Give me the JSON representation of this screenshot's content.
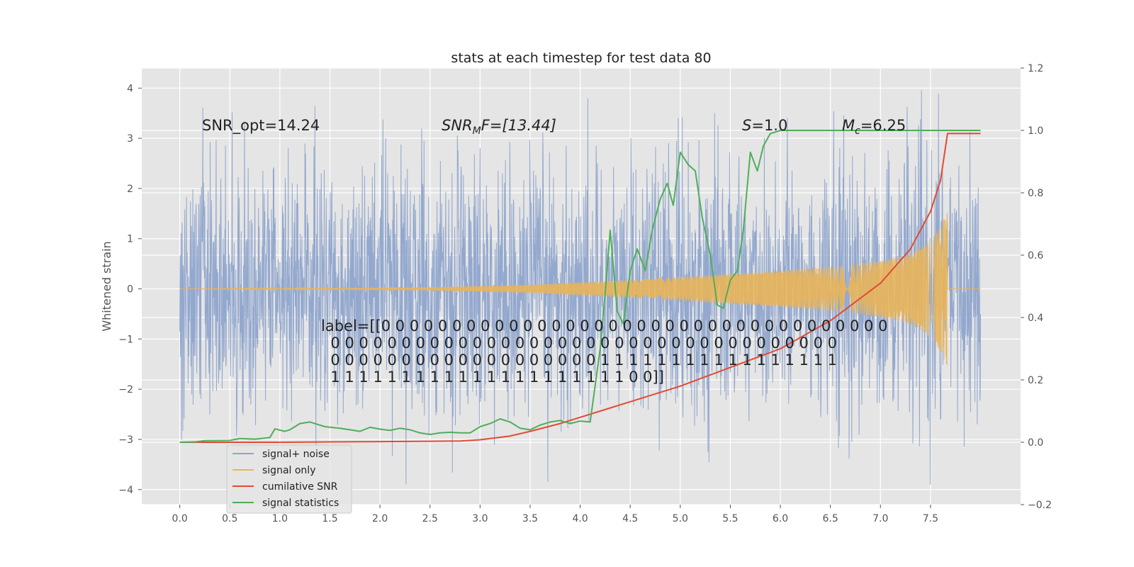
{
  "chart_data": {
    "type": "line",
    "title": "stats at each timestep for test data 80",
    "ylabel": "Whitened strain",
    "xlabel": "",
    "xlim": [
      -0.38,
      8.4
    ],
    "ylim": [
      -4.3,
      4.4
    ],
    "y2lim": [
      -0.2,
      1.2
    ],
    "grid": true,
    "x_ticks": [
      0.0,
      0.5,
      1.0,
      1.5,
      2.0,
      2.5,
      3.0,
      3.5,
      4.0,
      4.5,
      5.0,
      5.5,
      6.0,
      6.5,
      7.0,
      7.5
    ],
    "x_tick_labels": [
      "0.0",
      "0.5",
      "1.0",
      "1.5",
      "2.0",
      "2.5",
      "3.0",
      "3.5",
      "4.0",
      "4.5",
      "5.0",
      "5.5",
      "6.0",
      "6.5",
      "7.0",
      "7.5"
    ],
    "y_ticks": [
      -4,
      -3,
      -2,
      -1,
      0,
      1,
      2,
      3,
      4
    ],
    "y_tick_labels": [
      "−4",
      "−3",
      "−2",
      "−1",
      "0",
      "1",
      "2",
      "3",
      "4"
    ],
    "y2_ticks": [
      -0.2,
      0.0,
      0.2,
      0.4,
      0.6,
      0.8,
      1.0,
      1.2
    ],
    "y2_tick_labels": [
      "−0.2",
      "0.0",
      "0.2",
      "0.4",
      "0.6",
      "0.8",
      "1.0",
      "1.2"
    ],
    "legend_position": "lower-left",
    "annotations": {
      "snr_opt": "SNR_opt=14.24",
      "snr_mf_sym": "SNR",
      "snr_mf_sub": "M",
      "snr_mf_rest": "F=[13.44]",
      "s_sym": "S",
      "s_rest": "=1.0",
      "mc_sym": "M",
      "mc_sub": "c",
      "mc_rest": "=6.25",
      "label_lines": [
        "label=[[0 0 0 0 0 0 0 0 0 0 0 0 0 0 0 0 0 0 0 0 0 0 0 0 0 0 0 0 0 0 0 0 0 0 0 0",
        "  0 0 0 0 0 0 0 0 0 0 0 0 0 0 0 0 0 0 0 0 0 0 0 0 0 0 0 0 0 0 0 0 0 0 0 0",
        "  0 0 0 0 0 0 0 0 0 0 0 0 0 0 0 0 0 0 0 1 1 1 1 1 1 1 1 1 1 1 1 1 1 1 1 1",
        "  1 1 1 1 1 1 1 1 1 1 1 1 1 1 1 1 1 1 1 1 1 0 0]]"
      ]
    },
    "series": [
      {
        "name": "signal+ noise",
        "color": "#8ea4cc",
        "axis": "left",
        "kind": "noise",
        "x_range": [
          0.0,
          8.0
        ],
        "amplitude_range": [
          -3.9,
          4.0
        ],
        "typical_std": 1.0
      },
      {
        "name": "signal only",
        "color": "#e8b45a",
        "axis": "left",
        "kind": "chirp",
        "x_range": [
          0.0,
          8.0
        ],
        "merger_time": 7.67,
        "envelope": {
          "x": [
            0.0,
            2.5,
            3.5,
            4.5,
            5.0,
            5.5,
            6.0,
            6.5,
            7.0,
            7.3,
            7.5,
            7.6,
            7.67
          ],
          "y": [
            0.0,
            0.03,
            0.08,
            0.18,
            0.24,
            0.3,
            0.36,
            0.44,
            0.56,
            0.7,
            0.95,
            1.25,
            1.55
          ]
        }
      },
      {
        "name": "cumilative SNR",
        "color": "#e24a33",
        "axis": "right",
        "x": [
          0.0,
          0.5,
          1.0,
          1.5,
          2.0,
          2.5,
          2.8,
          3.0,
          3.3,
          3.5,
          3.8,
          4.0,
          4.2,
          4.5,
          5.0,
          5.5,
          6.0,
          6.5,
          7.0,
          7.3,
          7.5,
          7.6,
          7.67,
          8.0
        ],
        "y": [
          0.0,
          0.0,
          0.0,
          0.001,
          0.002,
          0.003,
          0.004,
          0.008,
          0.02,
          0.035,
          0.06,
          0.08,
          0.1,
          0.13,
          0.18,
          0.24,
          0.3,
          0.39,
          0.51,
          0.62,
          0.74,
          0.84,
          0.99,
          0.99
        ]
      },
      {
        "name": "signal statistics",
        "color": "#4eae5b",
        "axis": "right",
        "x": [
          0.0,
          0.15,
          0.25,
          0.5,
          0.6,
          0.75,
          0.9,
          0.95,
          1.05,
          1.1,
          1.2,
          1.3,
          1.45,
          1.6,
          1.7,
          1.8,
          1.9,
          2.0,
          2.1,
          2.2,
          2.3,
          2.4,
          2.5,
          2.6,
          2.7,
          2.8,
          2.9,
          3.0,
          3.1,
          3.2,
          3.3,
          3.4,
          3.5,
          3.6,
          3.7,
          3.8,
          3.9,
          4.0,
          4.1,
          4.2,
          4.25,
          4.3,
          4.37,
          4.43,
          4.5,
          4.57,
          4.65,
          4.72,
          4.8,
          4.87,
          4.93,
          5.0,
          5.08,
          5.15,
          5.22,
          5.3,
          5.37,
          5.43,
          5.5,
          5.57,
          5.63,
          5.7,
          5.77,
          5.83,
          5.9,
          6.0,
          6.5,
          7.0,
          7.5,
          8.0
        ],
        "y": [
          0.0,
          0.001,
          0.005,
          0.006,
          0.012,
          0.01,
          0.015,
          0.043,
          0.035,
          0.04,
          0.06,
          0.065,
          0.05,
          0.045,
          0.04,
          0.035,
          0.048,
          0.042,
          0.038,
          0.045,
          0.04,
          0.03,
          0.025,
          0.03,
          0.032,
          0.03,
          0.03,
          0.05,
          0.06,
          0.075,
          0.065,
          0.045,
          0.04,
          0.055,
          0.065,
          0.07,
          0.06,
          0.068,
          0.065,
          0.3,
          0.48,
          0.68,
          0.42,
          0.38,
          0.55,
          0.62,
          0.55,
          0.68,
          0.78,
          0.83,
          0.76,
          0.93,
          0.89,
          0.87,
          0.72,
          0.6,
          0.44,
          0.43,
          0.52,
          0.55,
          0.68,
          0.93,
          0.87,
          0.95,
          0.99,
          1.0,
          1.0,
          1.0,
          1.0,
          1.0
        ]
      }
    ]
  }
}
